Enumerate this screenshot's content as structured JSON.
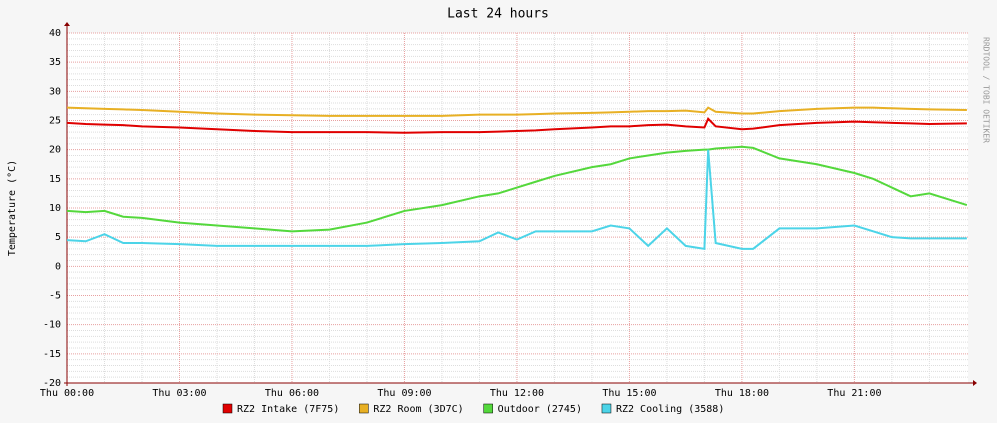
{
  "chart_data": {
    "type": "line",
    "title": "Last 24 hours",
    "y_label": "Temperature (°C)",
    "watermark": "RRDTOOL / TOBI OETIKER",
    "x": [
      0,
      0.5,
      1,
      1.5,
      2,
      3,
      4,
      5,
      6,
      7,
      8,
      9,
      10,
      11,
      11.5,
      12,
      12.5,
      13,
      14,
      14.5,
      15,
      15.5,
      16,
      16.5,
      17,
      17.1,
      17.3,
      18,
      18.3,
      19,
      20,
      21,
      21.5,
      22,
      22.5,
      23,
      24
    ],
    "xlim": [
      0,
      24.03
    ],
    "xticks": [
      {
        "value": 0,
        "label": "Thu 00:00"
      },
      {
        "value": 3,
        "label": "Thu 03:00"
      },
      {
        "value": 6,
        "label": "Thu 06:00"
      },
      {
        "value": 9,
        "label": "Thu 09:00"
      },
      {
        "value": 12,
        "label": "Thu 12:00"
      },
      {
        "value": 15,
        "label": "Thu 15:00"
      },
      {
        "value": 18,
        "label": "Thu 18:00"
      },
      {
        "value": 21,
        "label": "Thu 21:00"
      }
    ],
    "ylim": [
      -20,
      40
    ],
    "yticks": [
      -20,
      -15,
      -10,
      -5,
      0,
      5,
      10,
      15,
      20,
      25,
      30,
      35,
      40
    ],
    "grid": true,
    "series": [
      {
        "name": "RZ2 Intake (7F75)",
        "color": "#e00000",
        "values": [
          24.6,
          24.4,
          24.3,
          24.2,
          24,
          23.8,
          23.5,
          23.2,
          23,
          23,
          23,
          22.9,
          23,
          23,
          23.1,
          23.2,
          23.3,
          23.5,
          23.8,
          24,
          24,
          24.2,
          24.3,
          24,
          23.8,
          25.3,
          24,
          23.5,
          23.6,
          24.2,
          24.6,
          24.8,
          24.7,
          24.6,
          24.5,
          24.4,
          24.5
        ]
      },
      {
        "name": "RZ2 Room (3D7C)",
        "color": "#e8b024",
        "values": [
          27.2,
          27.1,
          27,
          26.9,
          26.8,
          26.5,
          26.2,
          26,
          25.9,
          25.8,
          25.8,
          25.8,
          25.8,
          26,
          26,
          26,
          26.1,
          26.2,
          26.3,
          26.4,
          26.5,
          26.6,
          26.6,
          26.7,
          26.4,
          27.2,
          26.5,
          26.2,
          26.2,
          26.6,
          27,
          27.2,
          27.2,
          27.1,
          27,
          26.9,
          26.8
        ]
      },
      {
        "name": "Outdoor (2745)",
        "color": "#54d83c",
        "values": [
          9.5,
          9.3,
          9.5,
          8.5,
          8.3,
          7.5,
          7,
          6.5,
          6,
          6.3,
          7.5,
          9.5,
          10.5,
          12,
          12.5,
          13.5,
          14.5,
          15.5,
          17,
          17.5,
          18.5,
          19,
          19.5,
          19.8,
          20,
          20,
          20.2,
          20.5,
          20.3,
          18.5,
          17.5,
          16,
          15,
          13.5,
          12,
          12.5,
          10.5
        ]
      },
      {
        "name": "RZ2 Cooling (3588)",
        "color": "#4cd4e8",
        "values": [
          4.5,
          4.3,
          5.5,
          4,
          4,
          3.8,
          3.5,
          3.5,
          3.5,
          3.5,
          3.5,
          3.8,
          4,
          4.3,
          5.8,
          4.6,
          6,
          6,
          6,
          7,
          6.5,
          3.5,
          6.5,
          3.5,
          3,
          20,
          4,
          3,
          3,
          6.5,
          6.5,
          7,
          6,
          5,
          4.8,
          4.8,
          4.8
        ]
      }
    ]
  }
}
